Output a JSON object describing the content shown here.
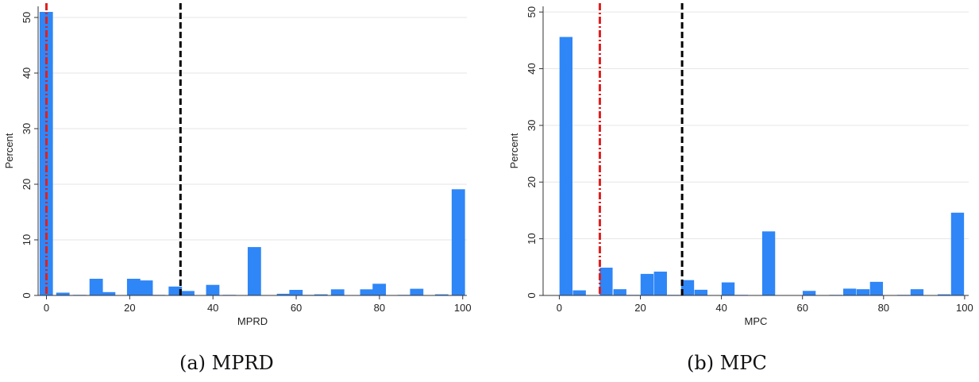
{
  "chart_data": [
    {
      "type": "bar",
      "caption": "(a) MPRD",
      "xlabel": "MPRD",
      "ylabel": "Percent",
      "xlim": [
        -2,
        101
      ],
      "ylim": [
        0,
        52
      ],
      "xticks": [
        0,
        20,
        40,
        60,
        80,
        100
      ],
      "yticks": [
        0,
        10,
        20,
        30,
        40,
        50
      ],
      "bin_width": 3.3,
      "bar_color": "#2f86f7",
      "grid": true,
      "x": [
        0,
        4,
        8,
        12,
        15,
        21,
        24,
        27,
        31,
        34,
        40,
        44,
        50,
        57,
        60,
        63,
        66,
        70,
        77,
        80,
        86,
        89,
        95,
        99
      ],
      "values": [
        51,
        0.5,
        0.1,
        3.0,
        0.6,
        3.0,
        2.7,
        0.1,
        1.6,
        0.8,
        1.9,
        0.1,
        8.7,
        0.3,
        1.0,
        0.1,
        0.2,
        1.1,
        1.1,
        2.1,
        0.1,
        1.2,
        0.2,
        19.1
      ],
      "vlines": [
        {
          "x": 0,
          "color": "#e02020",
          "style": "dash-dot"
        },
        {
          "x": 32.2,
          "color": "#000000",
          "style": "dashed"
        }
      ]
    },
    {
      "type": "bar",
      "caption": "(b) MPC",
      "xlabel": "MPC",
      "ylabel": "Percent",
      "xlim": [
        -4,
        101
      ],
      "ylim": [
        0,
        51
      ],
      "xticks": [
        0,
        20,
        40,
        60,
        80,
        100
      ],
      "yticks": [
        0,
        10,
        20,
        30,
        40,
        50
      ],
      "bin_width": 3.3,
      "bar_color": "#2f86f7",
      "grid": true,
      "x": [
        1.7,
        5,
        11.6,
        15,
        18.3,
        21.7,
        25,
        28.3,
        31.7,
        35,
        41.7,
        45,
        51.7,
        61.7,
        68.3,
        71.7,
        75,
        78.3,
        85,
        88.3,
        95,
        98.3
      ],
      "values": [
        45.6,
        0.9,
        4.9,
        1.1,
        0.1,
        3.8,
        4.2,
        0.1,
        2.7,
        1.0,
        2.3,
        0.1,
        11.3,
        0.8,
        0.1,
        1.2,
        1.1,
        2.4,
        0.1,
        1.1,
        0.2,
        14.6
      ],
      "vlines": [
        {
          "x": 10,
          "color": "#e02020",
          "style": "dash-dot"
        },
        {
          "x": 30.3,
          "color": "#000000",
          "style": "dashed"
        }
      ]
    }
  ]
}
